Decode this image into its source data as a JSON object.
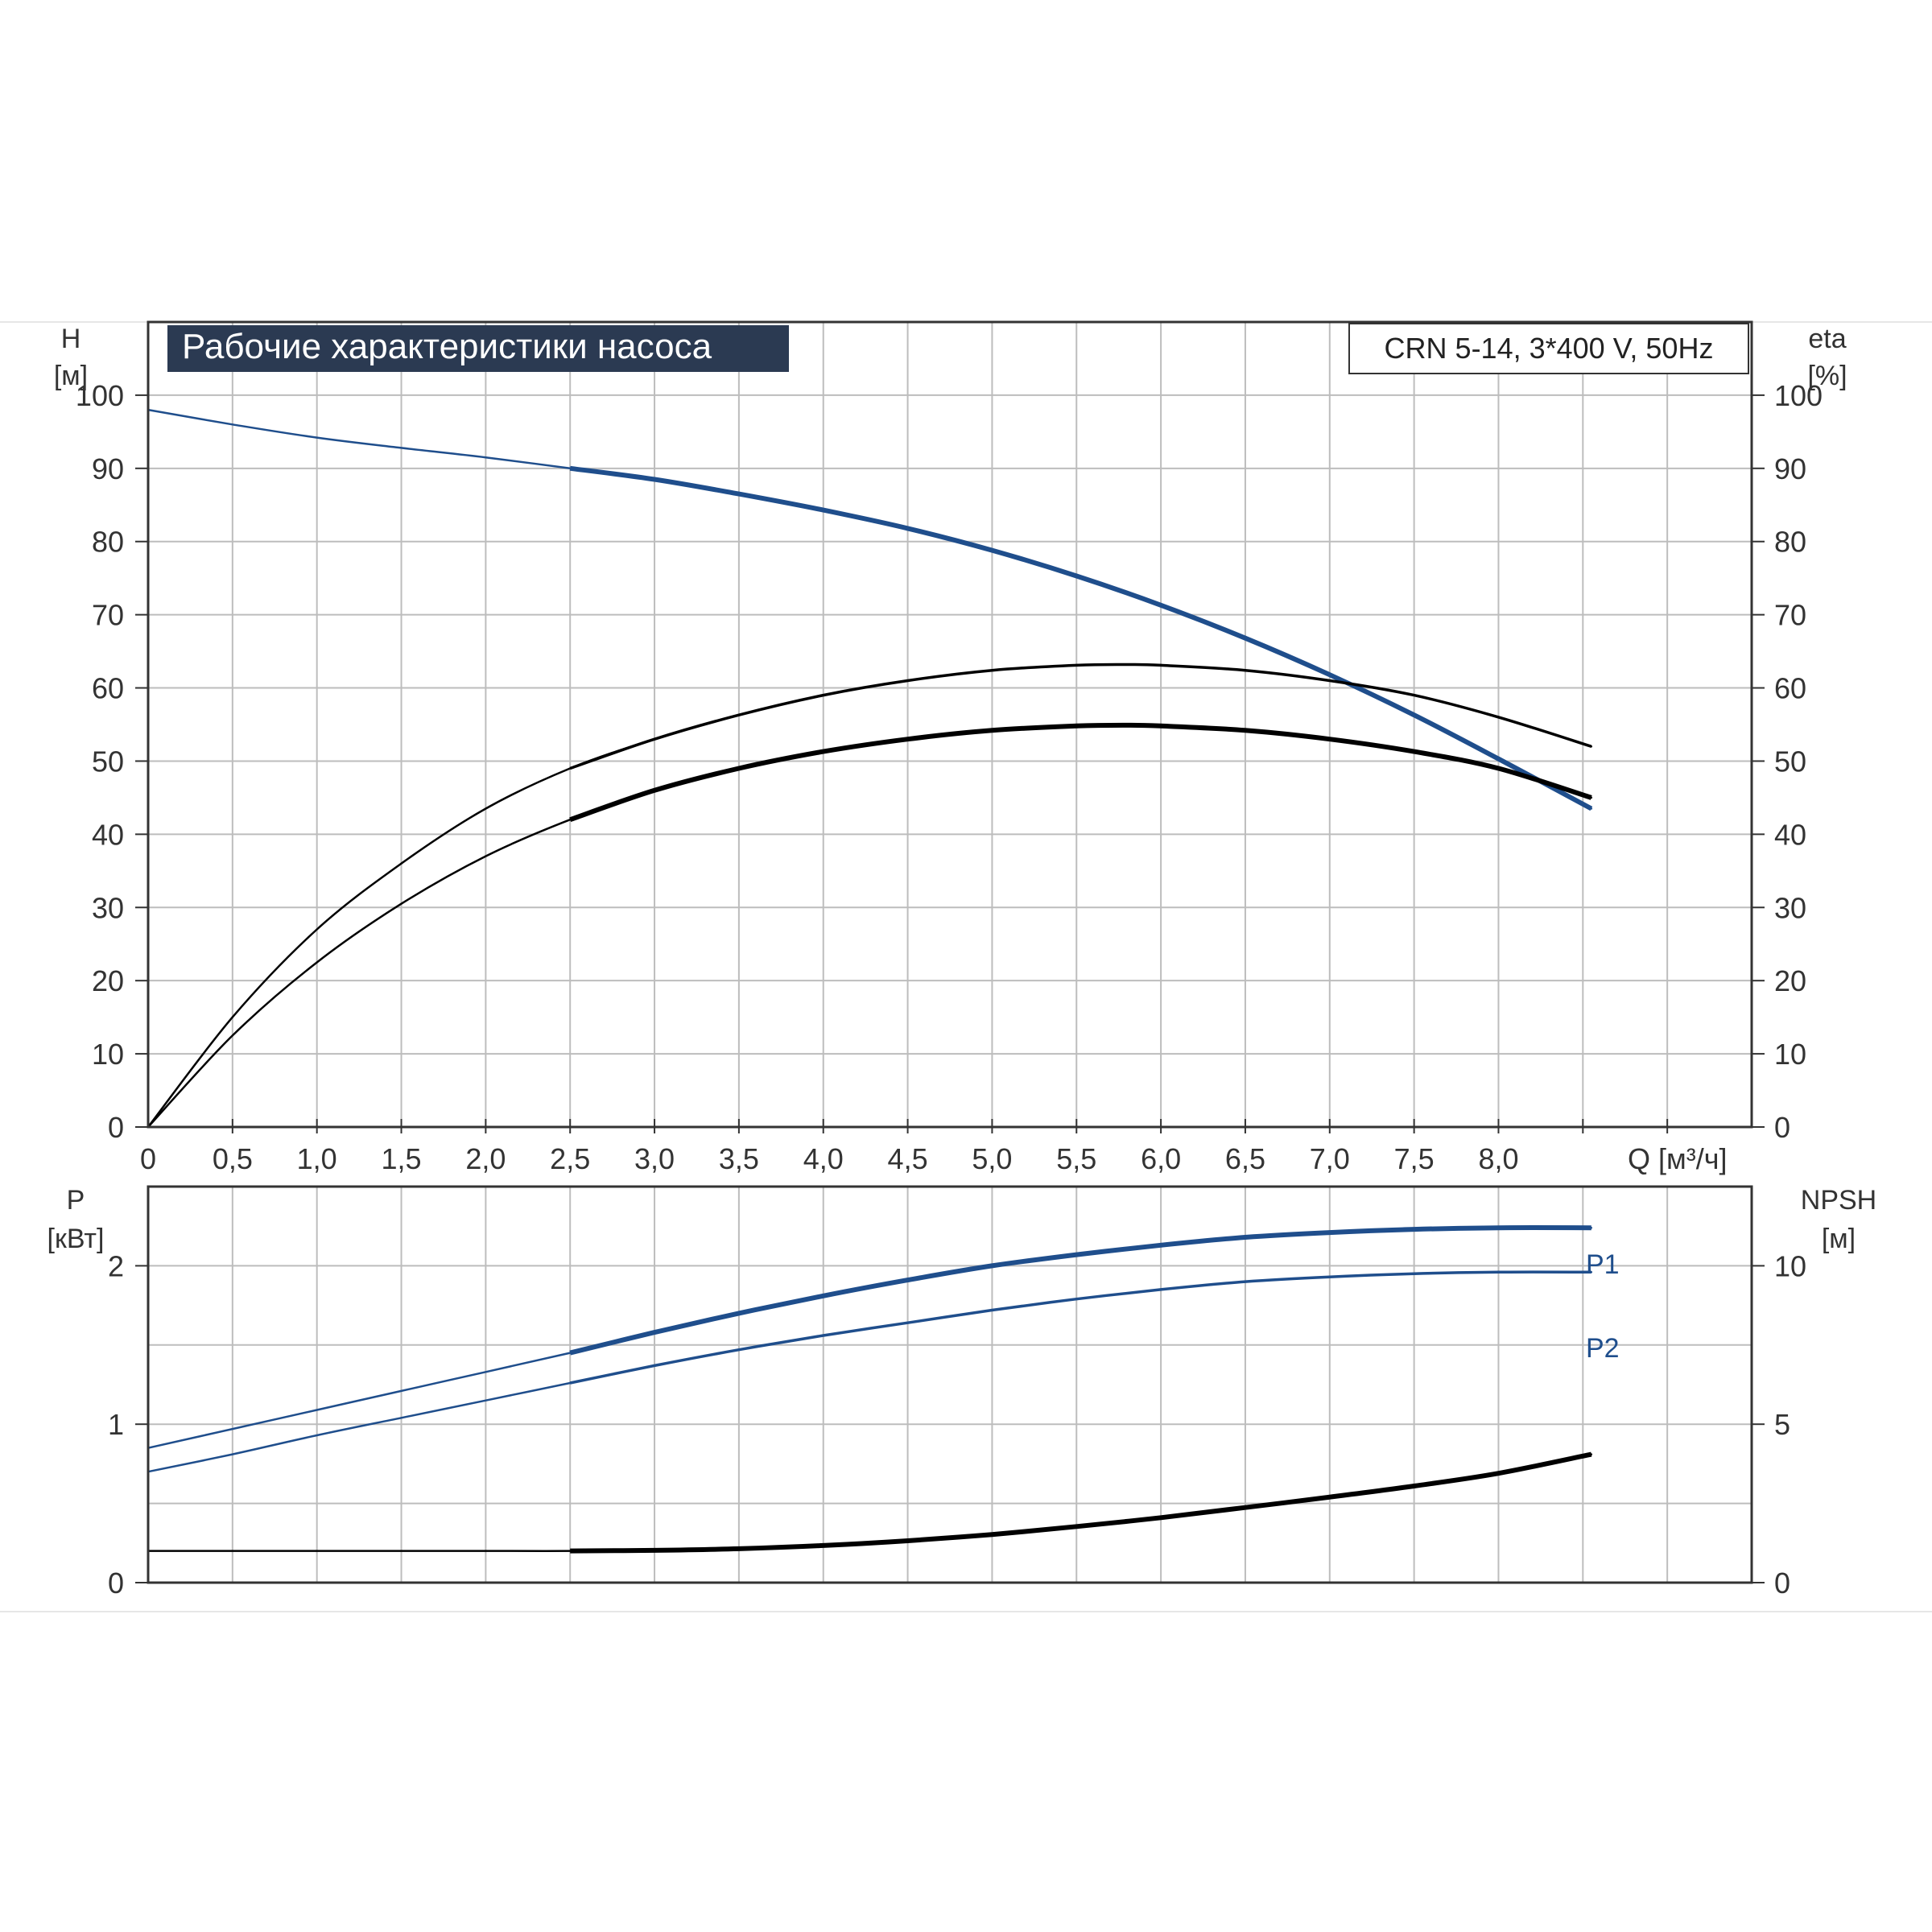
{
  "chart_data": [
    {
      "type": "line",
      "title": "Рабочие характеристики насоса",
      "subtitle": "CRN 5-14, 3*400 V, 50Hz",
      "xlabel": "Q [м³/ч]",
      "ylabel_left": {
        "name": "H",
        "unit": "[м]"
      },
      "ylabel_right": {
        "name": "eta",
        "unit": "[%]"
      },
      "xlim": [
        0,
        9.5
      ],
      "ylim": [
        0,
        110
      ],
      "x_ticks": [
        0,
        0.5,
        1.0,
        1.5,
        2.0,
        2.5,
        3.0,
        3.5,
        4.0,
        4.5,
        5.0,
        5.5,
        6.0,
        6.5,
        7.0,
        7.5,
        8.0
      ],
      "x_tick_labels": [
        "0",
        "0,5",
        "1,0",
        "1,5",
        "2,0",
        "2,5",
        "3,0",
        "3,5",
        "4,0",
        "4,5",
        "5,0",
        "5,5",
        "6,0",
        "6,5",
        "7,0",
        "7,5",
        "8,0"
      ],
      "y_ticks_left": [
        0,
        10,
        20,
        30,
        40,
        50,
        60,
        70,
        80,
        90,
        100
      ],
      "y_ticks_right": [
        0,
        10,
        20,
        30,
        40,
        50,
        60,
        70,
        80,
        90,
        100
      ],
      "grid": true,
      "series": [
        {
          "color": "#1f4e8c",
          "x": [
            0,
            0.5,
            1.0,
            1.5,
            2.0,
            2.5,
            3.0,
            3.5,
            4.0,
            4.5,
            5.0,
            5.5,
            6.0,
            6.5,
            7.0,
            7.5,
            8.0,
            8.55
          ],
          "y": [
            98,
            96,
            94.2,
            92.8,
            91.5,
            90,
            88.5,
            86.5,
            84.3,
            81.8,
            78.8,
            75.3,
            71.3,
            66.8,
            61.8,
            56.3,
            50.3,
            43.5
          ]
        },
        {
          "color": "#000000",
          "x": [
            0,
            0.5,
            1.0,
            1.5,
            2.0,
            2.5,
            3.0,
            3.5,
            4.0,
            4.5,
            5.0,
            5.5,
            5.8,
            6.0,
            6.5,
            7.0,
            7.5,
            8.0,
            8.55
          ],
          "y": [
            0,
            15,
            27,
            36,
            43.5,
            49,
            53,
            56.3,
            59,
            61,
            62.4,
            63.1,
            63.2,
            63.1,
            62.4,
            61,
            59,
            56,
            52
          ]
        },
        {
          "color": "#000000",
          "x": [
            0,
            0.5,
            1.0,
            1.5,
            2.0,
            2.5,
            3.0,
            3.5,
            4.0,
            4.5,
            5.0,
            5.5,
            5.8,
            6.0,
            6.5,
            7.0,
            7.5,
            8.0,
            8.55
          ],
          "y": [
            0,
            12.5,
            22.5,
            30.5,
            37,
            42,
            46,
            49,
            51.3,
            53,
            54.2,
            54.8,
            54.9,
            54.8,
            54.2,
            53,
            51.3,
            49,
            45
          ]
        }
      ]
    },
    {
      "type": "line",
      "xlim": [
        0,
        9.5
      ],
      "ylim": [
        0,
        2.5
      ],
      "ylabel_left": {
        "name": "P",
        "unit": "[кВт]"
      },
      "ylabel_right": {
        "name": "NPSH",
        "unit": "[м]"
      },
      "y_ticks_left": [
        0,
        1,
        2
      ],
      "y_ticks_right": [
        0,
        5,
        10
      ],
      "grid": true,
      "series": [
        {
          "name": "P1",
          "color": "#1f4e8c",
          "x": [
            0,
            0.5,
            1.0,
            1.5,
            2.0,
            2.5,
            3.0,
            3.5,
            4.0,
            4.5,
            5.0,
            5.5,
            6.0,
            6.5,
            7.0,
            7.5,
            8.0,
            8.55
          ],
          "y": [
            0.85,
            0.97,
            1.09,
            1.21,
            1.33,
            1.45,
            1.58,
            1.7,
            1.81,
            1.91,
            2.0,
            2.07,
            2.13,
            2.18,
            2.21,
            2.23,
            2.24,
            2.24
          ]
        },
        {
          "name": "P2",
          "color": "#1f4e8c",
          "x": [
            0,
            0.5,
            1.0,
            1.5,
            2.0,
            2.5,
            3.0,
            3.5,
            4.0,
            4.5,
            5.0,
            5.5,
            6.0,
            6.5,
            7.0,
            7.5,
            8.0,
            8.55
          ],
          "y": [
            0.7,
            0.81,
            0.93,
            1.04,
            1.15,
            1.26,
            1.37,
            1.47,
            1.56,
            1.64,
            1.72,
            1.79,
            1.85,
            1.9,
            1.93,
            1.95,
            1.96,
            1.96
          ]
        },
        {
          "color": "#000000",
          "axis": "right",
          "x": [
            0,
            1.0,
            2.0,
            2.5,
            3.0,
            3.5,
            4.0,
            4.5,
            5.0,
            5.5,
            6.0,
            6.5,
            7.0,
            7.5,
            8.0,
            8.55
          ],
          "y": [
            1.0,
            1.0,
            1.0,
            1.0,
            1.02,
            1.07,
            1.17,
            1.32,
            1.52,
            1.77,
            2.05,
            2.37,
            2.7,
            3.05,
            3.45,
            4.05
          ]
        }
      ]
    }
  ]
}
